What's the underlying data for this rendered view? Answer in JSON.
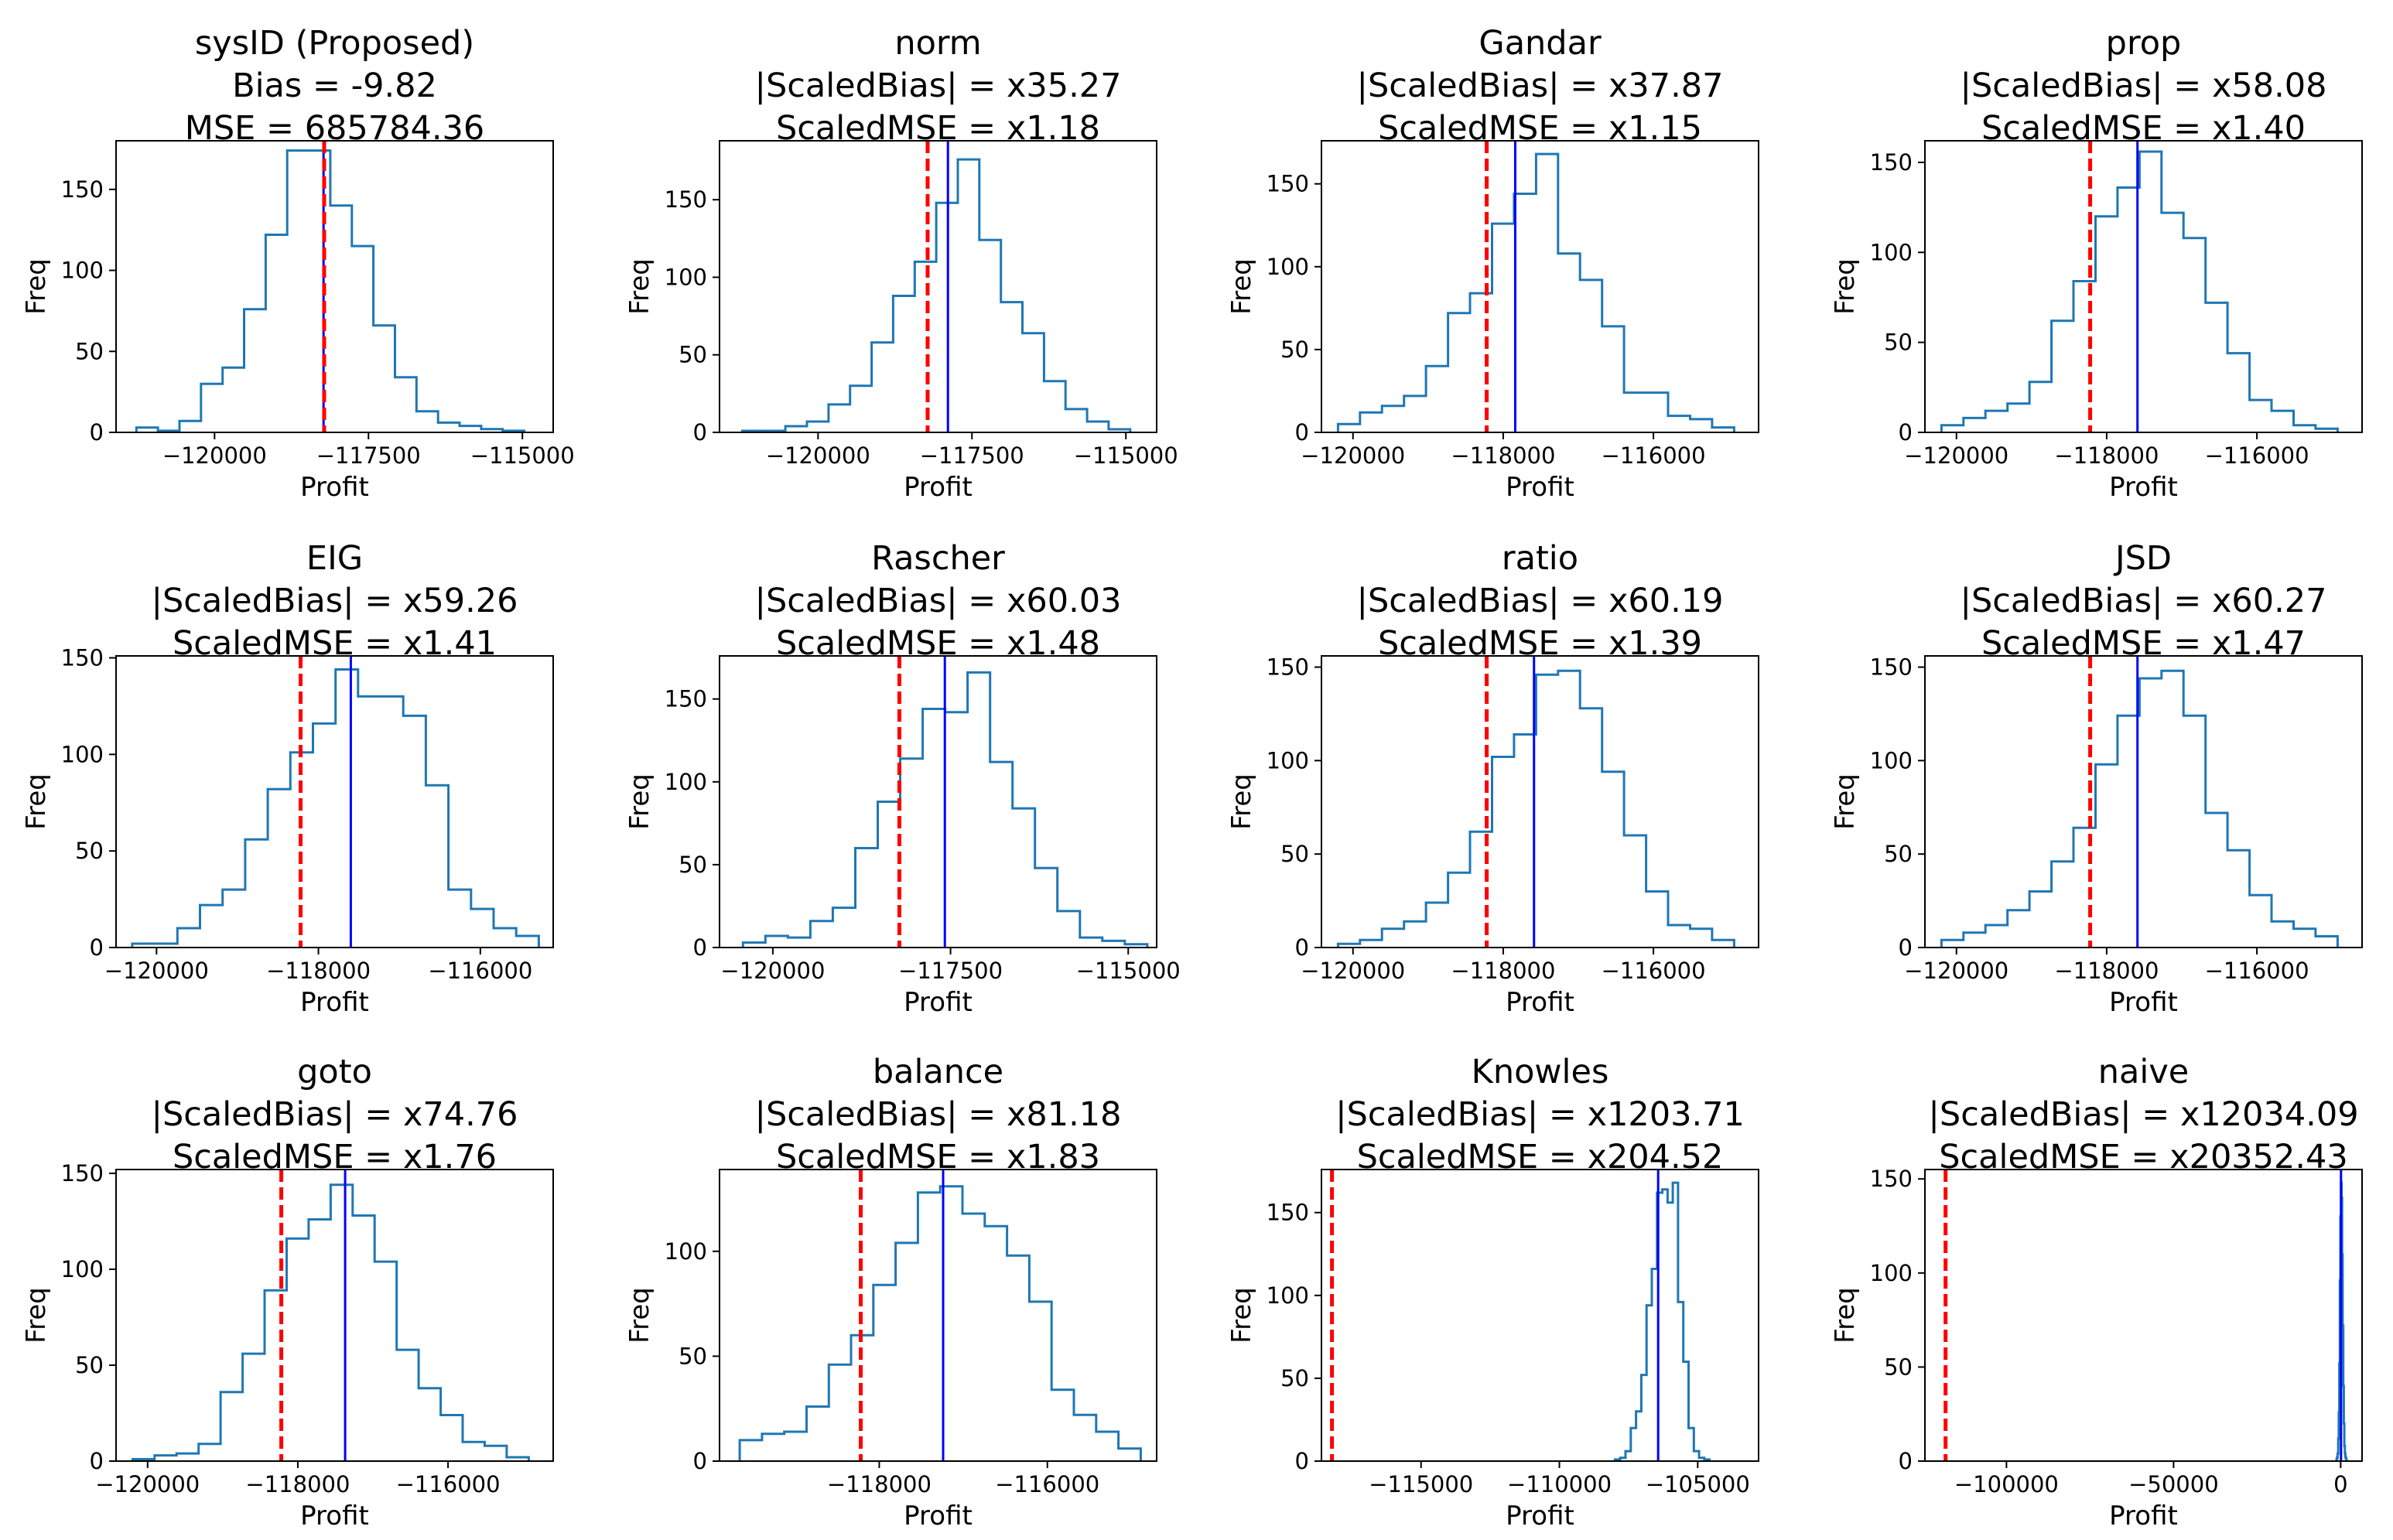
{
  "figure": {
    "x_axis_label": "Profit",
    "y_axis_label": "Freq",
    "colors": {
      "histogram": "#1f77b4",
      "estimate_line": "#0000ff",
      "truth_line": "#ff0000"
    }
  },
  "chart_data": [
    {
      "type": "histogram",
      "title_lines": [
        "sysID (Proposed)",
        "Bias = -9.82",
        "MSE = 685784.36"
      ],
      "xlabel": "Profit",
      "ylabel": "Freq",
      "xlim": [
        -121600,
        -114500
      ],
      "ylim": [
        0,
        180
      ],
      "xticks": [
        -120000,
        -117500,
        -115000
      ],
      "xtick_labels": [
        "−120000",
        "−117500",
        "−115000"
      ],
      "yticks": [
        0,
        50,
        100,
        150
      ],
      "bin_edges": [
        -121270,
        -120920,
        -120570,
        -120220,
        -119870,
        -119520,
        -119170,
        -118820,
        -118470,
        -118120,
        -117770,
        -117420,
        -117070,
        -116720,
        -116370,
        -116020,
        -115670,
        -115320,
        -114970
      ],
      "counts": [
        3,
        1,
        7,
        30,
        40,
        76,
        122,
        174,
        174,
        140,
        115,
        66,
        34,
        13,
        6,
        4,
        2,
        1
      ],
      "estimate_line": -118230,
      "truth_line": -118220
    },
    {
      "type": "histogram",
      "title_lines": [
        "norm",
        "|ScaledBias| = x35.27",
        "ScaledMSE = x1.18"
      ],
      "xlabel": "Profit",
      "ylabel": "Freq",
      "xlim": [
        -121600,
        -114500
      ],
      "ylim": [
        0,
        188
      ],
      "xticks": [
        -120000,
        -117500,
        -115000
      ],
      "xtick_labels": [
        "−120000",
        "−117500",
        "−115000"
      ],
      "yticks": [
        0,
        50,
        100,
        150
      ],
      "bin_edges": [
        -121230,
        -120880,
        -120530,
        -120180,
        -119830,
        -119480,
        -119130,
        -118780,
        -118430,
        -118080,
        -117730,
        -117380,
        -117030,
        -116680,
        -116330,
        -115980,
        -115630,
        -115280,
        -114930
      ],
      "counts": [
        1,
        1,
        4,
        7,
        18,
        30,
        58,
        88,
        110,
        148,
        176,
        124,
        84,
        64,
        33,
        15,
        7,
        2
      ],
      "estimate_line": -117890,
      "truth_line": -118220
    },
    {
      "type": "histogram",
      "title_lines": [
        "Gandar",
        "|ScaledBias| = x37.87",
        "ScaledMSE = x1.15"
      ],
      "xlabel": "Profit",
      "ylabel": "Freq",
      "xlim": [
        -120420,
        -114600
      ],
      "ylim": [
        0,
        176
      ],
      "xticks": [
        -120000,
        -118000,
        -116000
      ],
      "xtick_labels": [
        "−120000",
        "−118000",
        "−116000"
      ],
      "yticks": [
        0,
        50,
        100,
        150
      ],
      "bin_edges": [
        -120200,
        -119907,
        -119614,
        -119321,
        -119028,
        -118735,
        -118442,
        -118149,
        -117856,
        -117563,
        -117270,
        -116977,
        -116684,
        -116391,
        -116098,
        -115805,
        -115512,
        -115219,
        -114926
      ],
      "counts": [
        5,
        12,
        16,
        22,
        40,
        72,
        84,
        126,
        144,
        168,
        108,
        92,
        64,
        24,
        24,
        10,
        8,
        3
      ],
      "estimate_line": -117840,
      "truth_line": -118220
    },
    {
      "type": "histogram",
      "title_lines": [
        "prop",
        "|ScaledBias| = x58.08",
        "ScaledMSE = x1.40"
      ],
      "xlabel": "Profit",
      "ylabel": "Freq",
      "xlim": [
        -120420,
        -114600
      ],
      "ylim": [
        0,
        162
      ],
      "xticks": [
        -120000,
        -118000,
        -116000
      ],
      "xtick_labels": [
        "−120000",
        "−118000",
        "−116000"
      ],
      "yticks": [
        0,
        50,
        100,
        150
      ],
      "bin_edges": [
        -120200,
        -119907,
        -119614,
        -119321,
        -119028,
        -118735,
        -118442,
        -118149,
        -117856,
        -117563,
        -117270,
        -116977,
        -116684,
        -116391,
        -116098,
        -115805,
        -115512,
        -115219,
        -114926
      ],
      "counts": [
        4,
        8,
        12,
        16,
        28,
        62,
        84,
        120,
        136,
        156,
        122,
        108,
        72,
        44,
        18,
        12,
        4,
        2
      ],
      "estimate_line": -117590,
      "truth_line": -118220
    },
    {
      "type": "histogram",
      "title_lines": [
        "EIG",
        "|ScaledBias| = x59.26",
        "ScaledMSE = x1.41"
      ],
      "xlabel": "Profit",
      "ylabel": "Freq",
      "xlim": [
        -120500,
        -115100
      ],
      "ylim": [
        0,
        151
      ],
      "xticks": [
        -120000,
        -118000,
        -116000
      ],
      "xtick_labels": [
        "−120000",
        "−118000",
        "−116000"
      ],
      "yticks": [
        0,
        50,
        100,
        150
      ],
      "bin_edges": [
        -120300,
        -120021,
        -119742,
        -119463,
        -119184,
        -118905,
        -118626,
        -118347,
        -118068,
        -117789,
        -117510,
        -117231,
        -116952,
        -116673,
        -116394,
        -116115,
        -115836,
        -115557,
        -115278
      ],
      "counts": [
        2,
        2,
        10,
        22,
        30,
        56,
        82,
        101,
        116,
        144,
        130,
        130,
        120,
        84,
        30,
        20,
        10,
        6
      ],
      "estimate_line": -117600,
      "truth_line": -118220
    },
    {
      "type": "histogram",
      "title_lines": [
        "Rascher",
        "|ScaledBias| = x60.03",
        "ScaledMSE = x1.48"
      ],
      "xlabel": "Profit",
      "ylabel": "Freq",
      "xlim": [
        -120750,
        -114600
      ],
      "ylim": [
        0,
        176
      ],
      "xticks": [
        -120000,
        -117500,
        -115000
      ],
      "xtick_labels": [
        "−120000",
        "−117500",
        "−115000"
      ],
      "yticks": [
        0,
        50,
        100,
        150
      ],
      "bin_edges": [
        -120420,
        -120104,
        -119788,
        -119472,
        -119156,
        -118840,
        -118524,
        -118208,
        -117892,
        -117576,
        -117260,
        -116944,
        -116628,
        -116312,
        -115996,
        -115680,
        -115364,
        -115048,
        -114732
      ],
      "counts": [
        3,
        7,
        6,
        16,
        24,
        60,
        88,
        114,
        144,
        142,
        166,
        112,
        84,
        48,
        22,
        6,
        4,
        2
      ],
      "estimate_line": -117580,
      "truth_line": -118220
    },
    {
      "type": "histogram",
      "title_lines": [
        "ratio",
        "|ScaledBias| = x60.19",
        "ScaledMSE = x1.39"
      ],
      "xlabel": "Profit",
      "ylabel": "Freq",
      "xlim": [
        -120420,
        -114600
      ],
      "ylim": [
        0,
        156
      ],
      "xticks": [
        -120000,
        -118000,
        -116000
      ],
      "xtick_labels": [
        "−120000",
        "−118000",
        "−116000"
      ],
      "yticks": [
        0,
        50,
        100,
        150
      ],
      "bin_edges": [
        -120200,
        -119907,
        -119614,
        -119321,
        -119028,
        -118735,
        -118442,
        -118149,
        -117856,
        -117563,
        -117270,
        -116977,
        -116684,
        -116391,
        -116098,
        -115805,
        -115512,
        -115219,
        -114926
      ],
      "counts": [
        2,
        4,
        10,
        14,
        24,
        40,
        62,
        102,
        114,
        146,
        148,
        128,
        94,
        60,
        30,
        12,
        10,
        4
      ],
      "estimate_line": -117590,
      "truth_line": -118220
    },
    {
      "type": "histogram",
      "title_lines": [
        "JSD",
        "|ScaledBias| = x60.27",
        "ScaledMSE = x1.47"
      ],
      "xlabel": "Profit",
      "ylabel": "Freq",
      "xlim": [
        -120420,
        -114600
      ],
      "ylim": [
        0,
        156
      ],
      "xticks": [
        -120000,
        -118000,
        -116000
      ],
      "xtick_labels": [
        "−120000",
        "−118000",
        "−116000"
      ],
      "yticks": [
        0,
        50,
        100,
        150
      ],
      "bin_edges": [
        -120200,
        -119907,
        -119614,
        -119321,
        -119028,
        -118735,
        -118442,
        -118149,
        -117856,
        -117563,
        -117270,
        -116977,
        -116684,
        -116391,
        -116098,
        -115805,
        -115512,
        -115219,
        -114926
      ],
      "counts": [
        4,
        8,
        12,
        20,
        30,
        46,
        64,
        98,
        124,
        144,
        148,
        124,
        72,
        52,
        28,
        14,
        10,
        6
      ],
      "estimate_line": -117590,
      "truth_line": -118220
    },
    {
      "type": "histogram",
      "title_lines": [
        "goto",
        "|ScaledBias| = x74.76",
        "ScaledMSE = x1.76"
      ],
      "xlabel": "Profit",
      "ylabel": "Freq",
      "xlim": [
        -120420,
        -114600
      ],
      "ylim": [
        0,
        152
      ],
      "xticks": [
        -120000,
        -118000,
        -116000
      ],
      "xtick_labels": [
        "−120000",
        "−118000",
        "−116000"
      ],
      "yticks": [
        0,
        50,
        100,
        150
      ],
      "bin_edges": [
        -120200,
        -119907,
        -119614,
        -119321,
        -119028,
        -118735,
        -118442,
        -118149,
        -117856,
        -117563,
        -117270,
        -116977,
        -116684,
        -116391,
        -116098,
        -115805,
        -115512,
        -115219,
        -114926
      ],
      "counts": [
        1,
        3,
        4,
        9,
        36,
        56,
        89,
        116,
        126,
        144,
        128,
        104,
        58,
        38,
        24,
        10,
        8,
        2
      ],
      "estimate_line": -117370,
      "truth_line": -118220
    },
    {
      "type": "histogram",
      "title_lines": [
        "balance",
        "|ScaledBias| = x81.18",
        "ScaledMSE = x1.83"
      ],
      "xlabel": "Profit",
      "ylabel": "Freq",
      "xlim": [
        -119900,
        -114700
      ],
      "ylim": [
        0,
        139
      ],
      "xticks": [
        -118000,
        -116000
      ],
      "xtick_labels": [
        "−118000",
        "−116000"
      ],
      "yticks": [
        0,
        50,
        100
      ],
      "bin_edges": [
        -119660,
        -119395,
        -119130,
        -118865,
        -118600,
        -118335,
        -118070,
        -117805,
        -117540,
        -117275,
        -117010,
        -116745,
        -116480,
        -116215,
        -115950,
        -115685,
        -115420,
        -115155,
        -114890
      ],
      "counts": [
        10,
        13,
        14,
        26,
        46,
        60,
        84,
        104,
        128,
        131,
        118,
        112,
        98,
        76,
        34,
        22,
        14,
        6
      ],
      "estimate_line": -117240,
      "truth_line": -118220
    },
    {
      "type": "histogram",
      "title_lines": [
        "Knowles",
        "|ScaledBias| = x1203.71",
        "ScaledMSE = x204.52"
      ],
      "xlabel": "Profit",
      "ylabel": "Freq",
      "xlim": [
        -118600,
        -102800
      ],
      "ylim": [
        0,
        176
      ],
      "xticks": [
        -115000,
        -110000,
        -105000
      ],
      "xtick_labels": [
        "−115000",
        "−110000",
        "−105000"
      ],
      "yticks": [
        0,
        50,
        100,
        150
      ],
      "bin_edges": [
        -107990,
        -107800,
        -107610,
        -107420,
        -107230,
        -107040,
        -106850,
        -106660,
        -106470,
        -106280,
        -106090,
        -105900,
        -105710,
        -105520,
        -105330,
        -105140,
        -104950,
        -104760,
        -104570
      ],
      "counts": [
        1,
        2,
        6,
        20,
        30,
        52,
        94,
        116,
        162,
        164,
        156,
        168,
        96,
        60,
        20,
        6,
        2,
        1
      ],
      "estimate_line": -106430,
      "truth_line": -118220
    },
    {
      "type": "histogram",
      "title_lines": [
        "naive",
        "|ScaledBias| = x12034.09",
        "ScaledMSE = x20352.43"
      ],
      "xlabel": "Profit",
      "ylabel": "Freq",
      "xlim": [
        -124400,
        6400
      ],
      "ylim": [
        0,
        155
      ],
      "xticks": [
        -100000,
        -50000,
        0
      ],
      "xtick_labels": [
        "−100000",
        "−50000",
        "0"
      ],
      "yticks": [
        0,
        50,
        100,
        150
      ],
      "bin_edges": [
        -1240,
        -1073,
        -906,
        -739,
        -572,
        -405,
        -238,
        -71,
        96,
        263,
        430,
        597,
        764,
        931,
        1098,
        1265,
        1432,
        1599,
        1766
      ],
      "counts": [
        1,
        2,
        4,
        12,
        26,
        52,
        96,
        130,
        148,
        140,
        110,
        72,
        40,
        20,
        8,
        4,
        2,
        1
      ],
      "estimate_line": 100,
      "truth_line": -118220
    }
  ]
}
